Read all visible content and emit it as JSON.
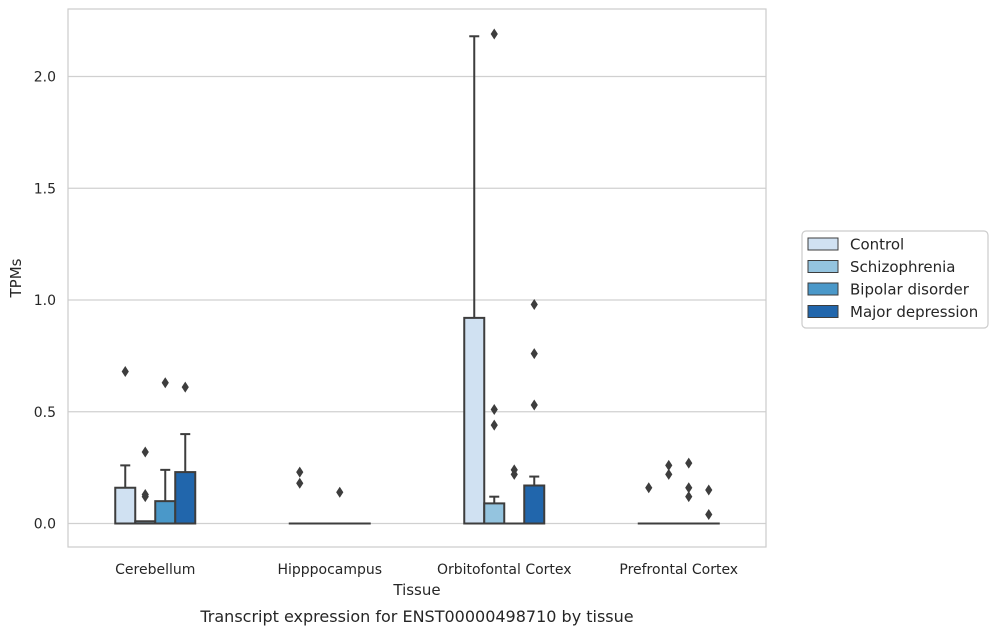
{
  "chart_data": {
    "type": "box",
    "title": "",
    "caption": "Transcript expression for ENST00000498710 by tissue",
    "xlabel": "Tissue",
    "ylabel": "TPMs",
    "ylim": [
      -0.1,
      2.3
    ],
    "yticks": [
      0.0,
      0.5,
      1.0,
      1.5,
      2.0
    ],
    "ytick_labels": [
      "0.0",
      "0.5",
      "1.0",
      "1.5",
      "2.0"
    ],
    "grid": "horizontal",
    "legend_position": "right",
    "categories": [
      "Cerebellum",
      "Hipppocampus",
      "Orbitofontal Cortex",
      "Prefrontal Cortex"
    ],
    "series": [
      {
        "name": "Control",
        "color": "#d0e1f2",
        "boxes": [
          {
            "q1": 0.0,
            "median": 0.0,
            "q3": 0.16,
            "whisker_low": 0.0,
            "whisker_high": 0.26,
            "outliers": [
              0.68
            ]
          },
          {
            "q1": 0.0,
            "median": 0.0,
            "q3": 0.0,
            "whisker_low": 0.0,
            "whisker_high": 0.0,
            "outliers": [
              0.18,
              0.23
            ]
          },
          {
            "q1": 0.0,
            "median": 0.0,
            "q3": 0.92,
            "whisker_low": 0.0,
            "whisker_high": 2.18,
            "outliers": []
          },
          {
            "q1": 0.0,
            "median": 0.0,
            "q3": 0.0,
            "whisker_low": 0.0,
            "whisker_high": 0.0,
            "outliers": [
              0.16
            ]
          }
        ]
      },
      {
        "name": "Schizophrenia",
        "color": "#94c4df",
        "boxes": [
          {
            "q1": 0.0,
            "median": 0.0,
            "q3": 0.01,
            "whisker_low": 0.0,
            "whisker_high": 0.01,
            "outliers": [
              0.12,
              0.13,
              0.32
            ]
          },
          {
            "q1": 0.0,
            "median": 0.0,
            "q3": 0.0,
            "whisker_low": 0.0,
            "whisker_high": 0.0,
            "outliers": []
          },
          {
            "q1": 0.0,
            "median": 0.0,
            "q3": 0.09,
            "whisker_low": 0.0,
            "whisker_high": 0.12,
            "outliers": [
              0.44,
              0.51,
              2.19
            ]
          },
          {
            "q1": 0.0,
            "median": 0.0,
            "q3": 0.0,
            "whisker_low": 0.0,
            "whisker_high": 0.0,
            "outliers": [
              0.22,
              0.26
            ]
          }
        ]
      },
      {
        "name": "Bipolar disorder",
        "color": "#4a98c9",
        "boxes": [
          {
            "q1": 0.0,
            "median": 0.0,
            "q3": 0.1,
            "whisker_low": 0.0,
            "whisker_high": 0.24,
            "outliers": [
              0.63
            ]
          },
          {
            "q1": 0.0,
            "median": 0.0,
            "q3": 0.0,
            "whisker_low": 0.0,
            "whisker_high": 0.0,
            "outliers": [
              0.14
            ]
          },
          {
            "q1": 0.0,
            "median": 0.0,
            "q3": 0.0,
            "whisker_low": 0.0,
            "whisker_high": 0.0,
            "outliers": [
              0.22,
              0.24
            ]
          },
          {
            "q1": 0.0,
            "median": 0.0,
            "q3": 0.0,
            "whisker_low": 0.0,
            "whisker_high": 0.0,
            "outliers": [
              0.12,
              0.16,
              0.27
            ]
          }
        ]
      },
      {
        "name": "Major depression",
        "color": "#2166ac",
        "boxes": [
          {
            "q1": 0.0,
            "median": 0.0,
            "q3": 0.23,
            "whisker_low": 0.0,
            "whisker_high": 0.4,
            "outliers": [
              0.61
            ]
          },
          {
            "q1": 0.0,
            "median": 0.0,
            "q3": 0.0,
            "whisker_low": 0.0,
            "whisker_high": 0.0,
            "outliers": []
          },
          {
            "q1": 0.0,
            "median": 0.0,
            "q3": 0.17,
            "whisker_low": 0.0,
            "whisker_high": 0.21,
            "outliers": [
              0.53,
              0.76,
              0.98
            ]
          },
          {
            "q1": 0.0,
            "median": 0.0,
            "q3": 0.0,
            "whisker_low": 0.0,
            "whisker_high": 0.0,
            "outliers": [
              0.04,
              0.15
            ]
          }
        ]
      }
    ]
  }
}
